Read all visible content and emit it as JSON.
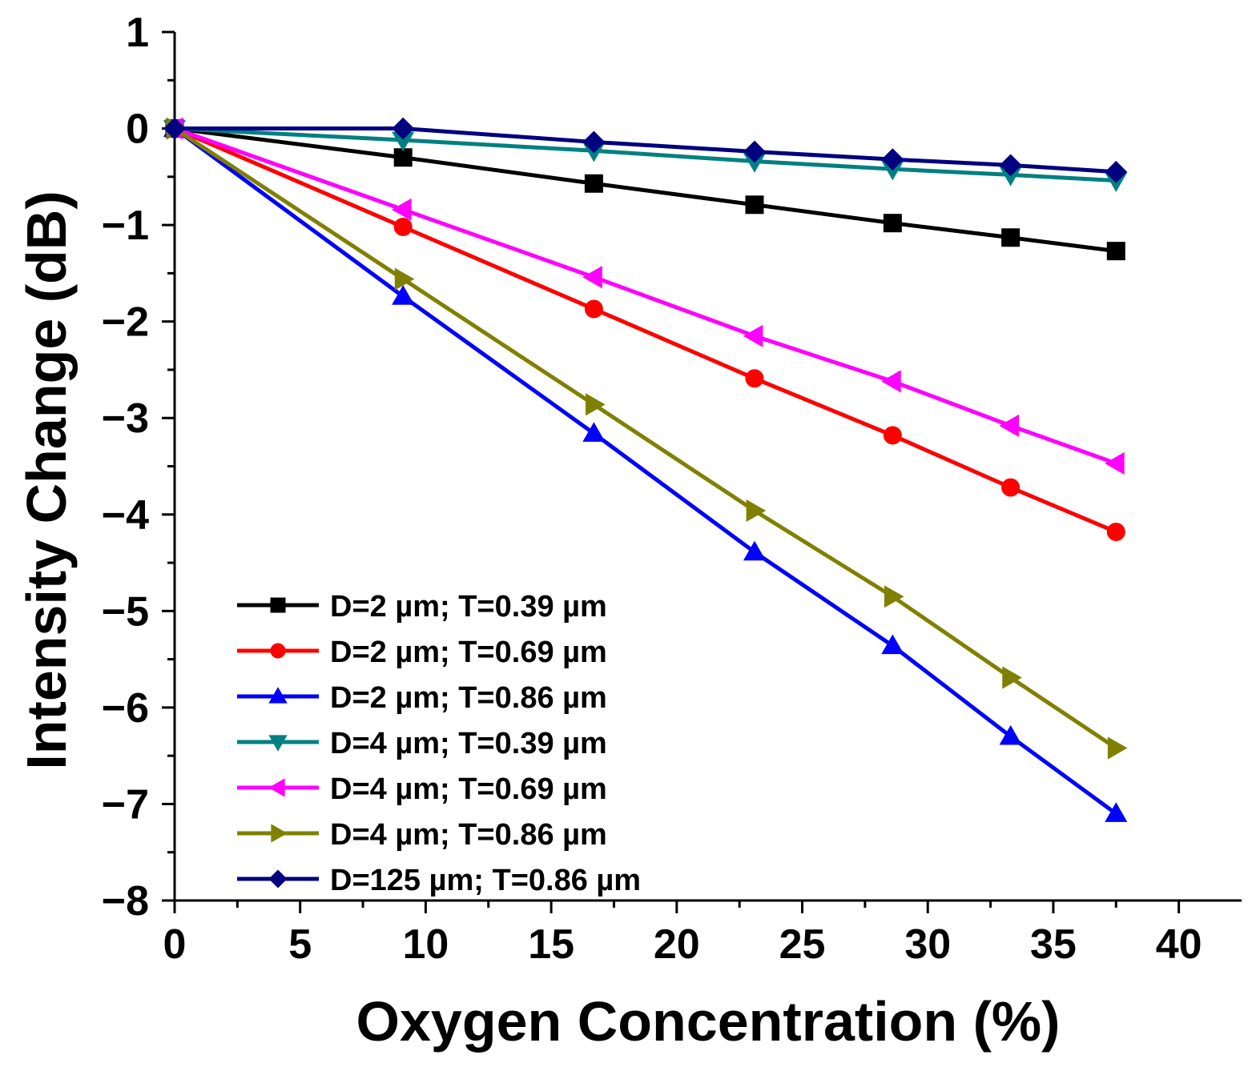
{
  "chart_data": {
    "type": "line",
    "title": "",
    "xlabel": "Oxygen Concentration (%)",
    "ylabel": "Intensity Change (dB)",
    "xlim": [
      0,
      42.5
    ],
    "ylim": [
      -8,
      1
    ],
    "x_ticks": [
      "0",
      "5",
      "10",
      "15",
      "20",
      "25",
      "30",
      "35",
      "40"
    ],
    "y_ticks": [
      "1",
      "0",
      "−1",
      "−2",
      "−3",
      "−4",
      "−5",
      "−6",
      "−7",
      "−8"
    ],
    "x_tick_values": [
      0,
      5,
      10,
      15,
      20,
      25,
      30,
      35,
      40
    ],
    "y_tick_values": [
      1,
      0,
      -1,
      -2,
      -3,
      -4,
      -5,
      -6,
      -7,
      -8
    ],
    "grid": false,
    "legend_position": "bottom-left",
    "x": [
      0,
      9.1,
      16.7,
      23.1,
      28.6,
      33.3,
      37.5
    ],
    "series": [
      {
        "name": "D=2 µm; T=0.39 µm",
        "color": "#000000",
        "marker": "square",
        "values": [
          0,
          -0.3,
          -0.57,
          -0.79,
          -0.98,
          -1.13,
          -1.27
        ]
      },
      {
        "name": "D=2 µm; T=0.69 µm",
        "color": "#ff0000",
        "marker": "circle",
        "values": [
          0,
          -1.02,
          -1.87,
          -2.59,
          -3.18,
          -3.72,
          -4.18
        ]
      },
      {
        "name": "D=2 µm; T=0.86 µm",
        "color": "#0000ff",
        "marker": "triangle-up",
        "values": [
          0,
          -1.74,
          -3.16,
          -4.39,
          -5.36,
          -6.3,
          -7.1
        ]
      },
      {
        "name": "D=4 µm; T=0.39 µm",
        "color": "#008080",
        "marker": "triangle-down",
        "values": [
          0,
          -0.12,
          -0.23,
          -0.34,
          -0.42,
          -0.48,
          -0.54
        ]
      },
      {
        "name": "D=4 µm; T=0.69 µm",
        "color": "#ff00ff",
        "marker": "triangle-left",
        "values": [
          0,
          -0.84,
          -1.54,
          -2.15,
          -2.62,
          -3.08,
          -3.47
        ]
      },
      {
        "name": "D=4 µm; T=0.86 µm",
        "color": "#808000",
        "marker": "triangle-right",
        "values": [
          0,
          -1.56,
          -2.86,
          -3.96,
          -4.85,
          -5.69,
          -6.42
        ]
      },
      {
        "name": "D=125 µm; T=0.86 µm",
        "color": "#000080",
        "marker": "diamond",
        "values": [
          0,
          0.0,
          -0.14,
          -0.24,
          -0.32,
          -0.38,
          -0.45
        ]
      }
    ]
  }
}
